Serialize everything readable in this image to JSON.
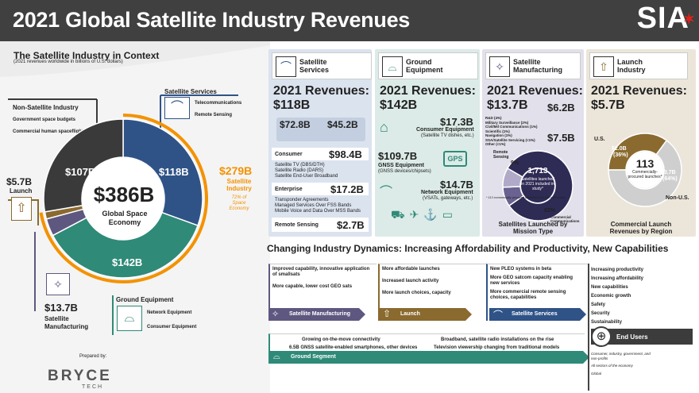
{
  "title": "2021 Global Satellite Industry Revenues",
  "logo": "SIA",
  "context": {
    "heading": "The Satellite Industry in Context",
    "sub": "(2021 revenues worldwide in billions of U.S. dollars)"
  },
  "colors": {
    "services": "#2b4d7c",
    "ground": "#2f8a7a",
    "manufacturing": "#5b4f7a",
    "launch": "#8a6a2e",
    "nonsat": "#3c3c3c",
    "accent": "#f39200"
  },
  "chart_data": [
    {
      "type": "pie",
      "title": "Global Space Economy",
      "center_value": "$386B",
      "center_label": "Global Space Economy",
      "categories": [
        "Satellite Services",
        "Ground Equipment",
        "Satellite Manufacturing",
        "Launch",
        "Non-Satellite Industry"
      ],
      "values": [
        118,
        142,
        13.7,
        5.7,
        107
      ],
      "labels": [
        "$118B",
        "$142B",
        "$13.7B",
        "$5.7B",
        "$107B"
      ],
      "colors": [
        "#2f5387",
        "#2f8a78",
        "#5e5880",
        "#8a6a2e",
        "#3a3a3a"
      ]
    },
    {
      "type": "pie",
      "title": "Satellites Launched by Mission Type",
      "center_value": "1,713",
      "center_label": "Satellites launched in 2021 included in study*",
      "categories": [
        "Commercial Communications",
        "Remote Sensing",
        "Other"
      ],
      "values": [
        82,
        9,
        9
      ],
      "labels": [
        "82%",
        "9%",
        ""
      ],
      "colors": [
        "#2e2b55",
        "#6a6290",
        "#b0aac8"
      ]
    },
    {
      "type": "pie",
      "title": "Commercial Launch Revenues by Region",
      "center_value": "113",
      "center_label": "Commercially-procured launches*",
      "categories": [
        "U.S.",
        "Non-U.S."
      ],
      "values": [
        2.0,
        3.7
      ],
      "labels": [
        "$2.0B (36%)",
        "$3.7B (64%)"
      ],
      "colors": [
        "#8a6a2e",
        "#cfcfcf"
      ]
    }
  ],
  "left": {
    "nonsat": {
      "title": "Non-Satellite Industry",
      "items": [
        "Government space budgets",
        "Commercial human spaceflight"
      ]
    },
    "services": {
      "title": "Satellite Services",
      "items": [
        "Telecommunications",
        "Remote Sensing"
      ]
    },
    "satind": {
      "value": "$279B",
      "label": "Satellite Industry",
      "sub": "72% of Space Economy"
    },
    "launch": {
      "value": "$5.7B",
      "label": "Launch"
    },
    "manuf": {
      "value": "$13.7B",
      "label": "Satellite Manufacturing"
    },
    "ground": {
      "title": "Ground Equipment",
      "items": [
        "Network Equipment",
        "Consumer Equipment"
      ]
    },
    "prepared": "Prepared by:",
    "bryce": "BRYCE",
    "tech": "TECH"
  },
  "cards": {
    "services": {
      "title": "Satellite Services",
      "rev_label": "2021 Revenues:",
      "rev": "$118B",
      "us": "$72.8B",
      "world": "$45.2B",
      "consumer": {
        "label": "Consumer",
        "value": "$98.4B",
        "items": [
          "Satellite TV (DBS/DTH)",
          "Satellite Radio (DARS)",
          "Satellite End-User Broadband"
        ]
      },
      "enterprise": {
        "label": "Enterprise",
        "value": "$17.2B",
        "items": [
          "Transponder Agreements",
          "Managed Services Over FSS Bands",
          "Mobile Voice and Data Over MSS Bands"
        ]
      },
      "remote": {
        "label": "Remote Sensing",
        "value": "$2.7B"
      }
    },
    "ground": {
      "title": "Ground Equipment",
      "rev_label": "2021 Revenues:",
      "rev": "$142B",
      "consumer": {
        "value": "$17.3B",
        "label": "Consumer Equipment",
        "sub": "(Satellite TV dishes, etc.)"
      },
      "gnss": {
        "value": "$109.7B",
        "label": "GNSS Equipment",
        "sub": "(GNSS devices/chipsets)",
        "badge": "GPS"
      },
      "network": {
        "value": "$14.7B",
        "label": "Network Equipment",
        "sub": "(VSATs, gateways, etc.)"
      }
    },
    "manuf": {
      "title": "Satellite Manufacturing",
      "rev_label": "2021 Revenues:",
      "rev": "$13.7B",
      "us": "$6.2B",
      "world": "$7.5B",
      "items": [
        "R&D (4%)",
        "Military Surveillance (2%)",
        "Civil/Mil Communications (1%)",
        "Scientific (1%)",
        "Navigation (1%)",
        "SSA/Satellite Servicing (<1%)",
        "Other (<1%)"
      ],
      "remote_label": "Remote Sensing",
      "pct9": "9%",
      "pct82": "82%",
      "comm_label": "Commercial Communications",
      "caption": "Satellites Launched by Mission Type",
      "note": "* 113 commercially procured launches from 144 total orbital"
    },
    "launch": {
      "title": "Launch Industry",
      "rev_label": "2021 Revenues:",
      "rev": "$5.7B",
      "us_label": "U.S.",
      "nonus_label": "Non-U.S.",
      "us_val": "$2.0B",
      "us_pct": "(36%)",
      "nonus_val": "$3.7B",
      "nonus_pct": "(64%)",
      "center": "113",
      "center_sub": "Commercially-procured launches*",
      "caption": "Commercial Launch Revenues by Region"
    }
  },
  "dynamics": {
    "heading": "Changing Industry Dynamics: Increasing Affordability and Productivity, New Capabilities",
    "manuf": {
      "label": "Satellite Manufacturing",
      "items": [
        "Improved capability, innovative application of smallsats",
        "More capable, lower cost GEO sats"
      ]
    },
    "launch": {
      "label": "Launch",
      "items": [
        "More affordable launches",
        "Increased launch activity",
        "More launch choices, capacity"
      ]
    },
    "services": {
      "label": "Satellite Services",
      "items": [
        "New PLEO systems in beta",
        "More GEO satcom capacity enabling new services",
        "More commercial remote sensing choices, capabilities"
      ]
    },
    "ground": {
      "label": "Ground Segment",
      "items": [
        "Growing on-the-move connectivity",
        "6.5B GNSS satellite-enabled smartphones, other devices",
        "Broadband, satellite radio installations on the rise",
        "Television viewership changing from traditional models"
      ]
    },
    "end": {
      "items": [
        "Increasing productivity",
        "Increasing affordability",
        "New capabilities",
        "Economic growth",
        "Safety",
        "Security",
        "Sustainability"
      ],
      "label": "End Users",
      "sub": [
        "Consumer, industry, government, and non-profits",
        "All sectors of the economy",
        "Global"
      ]
    }
  }
}
